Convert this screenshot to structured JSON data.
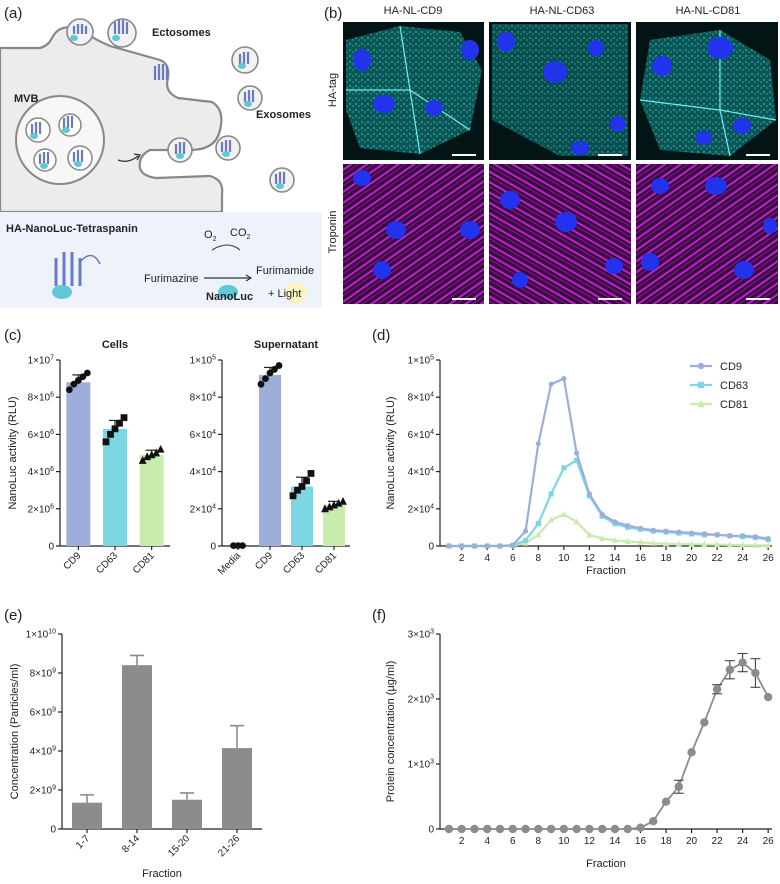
{
  "panels": {
    "a": {
      "label": "(a)",
      "ectosomes": "Ectosomes",
      "mvb": "MVB",
      "exosomes": "Exosomes",
      "construct": "HA-NanoLuc-Tetraspanin",
      "o2": "O",
      "o2sub": "2",
      "co2": "CO",
      "co2sub": "2",
      "furimazine": "Furimazine",
      "furimamide": "Furimamide",
      "light": "+ Light",
      "nanoluc": "NanoLuc",
      "colors": {
        "membrane": "#888888",
        "cell": "#ececec",
        "tetraspanin": "#6a7bc4",
        "nanoluc": "#5ec8d8",
        "bg": "#eef3fb"
      }
    },
    "b": {
      "label": "(b)",
      "columns": [
        "HA-NL-CD9",
        "HA-NL-CD63",
        "HA-NL-CD81"
      ],
      "rows": [
        "HA-tag",
        "Troponin"
      ],
      "colors": {
        "hatag": "#2ec4c4",
        "nuclei": "#2233ee",
        "troponin": "#c020d0"
      }
    },
    "c": {
      "label": "(c)"
    },
    "d": {
      "label": "(d)"
    },
    "e": {
      "label": "(e)"
    },
    "f": {
      "label": "(f)"
    }
  },
  "chart_data": [
    {
      "id": "c-cells",
      "type": "bar",
      "title": "Cells",
      "ylabel": "NanoLuc activity (RLU)",
      "categories": [
        "CD9",
        "CD63",
        "CD81"
      ],
      "values": [
        8800000,
        6300000,
        4900000
      ],
      "errors": [
        400000,
        450000,
        250000
      ],
      "points": [
        [
          8400000,
          8700000,
          8900000,
          9100000,
          9300000
        ],
        [
          5600000,
          6000000,
          6300000,
          6600000,
          6900000
        ],
        [
          4600000,
          4800000,
          4900000,
          5000000,
          5200000
        ]
      ],
      "markers": [
        "circle",
        "square",
        "triangle"
      ],
      "colors": [
        "#9eaedb",
        "#7dd7e3",
        "#c9ebae"
      ],
      "ylim": [
        0,
        10000000
      ],
      "yticks": [
        {
          "v": 0,
          "m": "0",
          "e": ""
        },
        {
          "v": 2000000,
          "m": "2×10",
          "e": "6"
        },
        {
          "v": 4000000,
          "m": "4×10",
          "e": "6"
        },
        {
          "v": 6000000,
          "m": "6×10",
          "e": "6"
        },
        {
          "v": 8000000,
          "m": "8×10",
          "e": "6"
        },
        {
          "v": 10000000,
          "m": "1×10",
          "e": "7"
        }
      ]
    },
    {
      "id": "c-supernatant",
      "type": "bar",
      "title": "Supernatant",
      "categories": [
        "Media",
        "CD9",
        "CD63",
        "CD81"
      ],
      "values": [
        200,
        92000,
        32000,
        22000
      ],
      "errors": [
        0,
        4000,
        5000,
        2000
      ],
      "points": [
        [
          200,
          200,
          200
        ],
        [
          87000,
          90000,
          93000,
          95000,
          97000
        ],
        [
          27000,
          30000,
          32000,
          35000,
          39000
        ],
        [
          20000,
          21000,
          22000,
          23000,
          24000
        ]
      ],
      "markers": [
        "circle",
        "circle",
        "square",
        "triangle"
      ],
      "colors": [
        "#ffffff",
        "#9eaedb",
        "#7dd7e3",
        "#c9ebae"
      ],
      "ylim": [
        0,
        100000
      ],
      "yticks": [
        {
          "v": 0,
          "m": "0",
          "e": ""
        },
        {
          "v": 20000,
          "m": "2×10",
          "e": "4"
        },
        {
          "v": 40000,
          "m": "4×10",
          "e": "4"
        },
        {
          "v": 60000,
          "m": "6×10",
          "e": "4"
        },
        {
          "v": 80000,
          "m": "8×10",
          "e": "4"
        },
        {
          "v": 100000,
          "m": "1×10",
          "e": "5"
        }
      ]
    },
    {
      "id": "d",
      "type": "line",
      "xlabel": "Fraction",
      "ylabel": "NanoLuc activity (RLU)",
      "x": [
        1,
        2,
        3,
        4,
        5,
        6,
        7,
        8,
        9,
        10,
        11,
        12,
        13,
        14,
        15,
        16,
        17,
        18,
        19,
        20,
        21,
        22,
        23,
        24,
        25,
        26
      ],
      "xticks": [
        2,
        4,
        6,
        8,
        10,
        12,
        14,
        16,
        18,
        20,
        22,
        24,
        26
      ],
      "xlim": [
        0.3,
        26.3
      ],
      "ylim": [
        0,
        100000
      ],
      "yticks": [
        {
          "v": 0,
          "m": "0",
          "e": ""
        },
        {
          "v": 20000,
          "m": "2×10",
          "e": "4"
        },
        {
          "v": 40000,
          "m": "4×10",
          "e": "4"
        },
        {
          "v": 60000,
          "m": "6×10",
          "e": "4"
        },
        {
          "v": 80000,
          "m": "8×10",
          "e": "4"
        },
        {
          "v": 100000,
          "m": "1×10",
          "e": "5"
        }
      ],
      "legend_position": "top-right",
      "series": [
        {
          "name": "CD9",
          "color": "#9eaedb",
          "marker": "circle",
          "values": [
            0,
            0,
            0,
            0,
            0,
            500,
            8000,
            55000,
            87000,
            90000,
            50000,
            28000,
            17000,
            13000,
            11000,
            9500,
            8500,
            8000,
            7500,
            7000,
            6500,
            6000,
            5500,
            5500,
            5000,
            4000
          ]
        },
        {
          "name": "CD63",
          "color": "#7dd7e3",
          "marker": "square",
          "values": [
            0,
            0,
            0,
            0,
            0,
            300,
            3000,
            12000,
            28000,
            42000,
            46000,
            27000,
            16000,
            12000,
            10000,
            9000,
            8000,
            7500,
            7000,
            6500,
            6000,
            6000,
            5500,
            5000,
            4500,
            3500
          ]
        },
        {
          "name": "CD81",
          "color": "#c9ebae",
          "marker": "triangle",
          "values": [
            0,
            0,
            0,
            0,
            0,
            200,
            1500,
            6000,
            14000,
            17000,
            13000,
            6000,
            4000,
            3000,
            2500,
            2000,
            1500,
            1200,
            1000,
            900,
            800,
            700,
            600,
            500,
            400,
            300
          ]
        }
      ]
    },
    {
      "id": "e",
      "type": "bar",
      "xlabel": "Fraction",
      "ylabel": "Concentration (Particles/ml)",
      "categories": [
        "1-7",
        "8-14",
        "15-20",
        "21-26"
      ],
      "values": [
        1350000000,
        8400000000,
        1500000000,
        4150000000
      ],
      "errors": [
        400000000,
        500000000,
        350000000,
        1150000000
      ],
      "color": "#8c8c8c",
      "ylim": [
        0,
        10000000000
      ],
      "yticks": [
        {
          "v": 0,
          "m": "0",
          "e": ""
        },
        {
          "v": 2000000000,
          "m": "2×10",
          "e": "9"
        },
        {
          "v": 4000000000,
          "m": "4×10",
          "e": "9"
        },
        {
          "v": 6000000000,
          "m": "6×10",
          "e": "9"
        },
        {
          "v": 8000000000,
          "m": "8×10",
          "e": "9"
        },
        {
          "v": 10000000000,
          "m": "1×10",
          "e": "10"
        }
      ]
    },
    {
      "id": "f",
      "type": "line",
      "xlabel": "Fraction",
      "ylabel": "Protein concentration (µg/ml)",
      "x": [
        1,
        2,
        3,
        4,
        5,
        6,
        7,
        8,
        9,
        10,
        11,
        12,
        13,
        14,
        15,
        16,
        17,
        18,
        19,
        20,
        21,
        22,
        23,
        24,
        25,
        26
      ],
      "xticks": [
        2,
        4,
        6,
        8,
        10,
        12,
        14,
        16,
        18,
        20,
        22,
        24,
        26
      ],
      "xlim": [
        0.3,
        26.3
      ],
      "ylim": [
        0,
        3000
      ],
      "yticks": [
        {
          "v": 0,
          "m": "0",
          "e": ""
        },
        {
          "v": 1000,
          "m": "1×10",
          "e": "3"
        },
        {
          "v": 2000,
          "m": "2×10",
          "e": "3"
        },
        {
          "v": 3000,
          "m": "3×10",
          "e": "3"
        }
      ],
      "color": "#8c8c8c",
      "series": [
        {
          "values": [
            0,
            0,
            0,
            0,
            0,
            0,
            0,
            0,
            0,
            0,
            0,
            0,
            0,
            0,
            0,
            20,
            120,
            420,
            650,
            1180,
            1640,
            2150,
            2450,
            2560,
            2400,
            2030
          ],
          "errors": [
            0,
            0,
            0,
            0,
            0,
            0,
            0,
            0,
            0,
            0,
            0,
            0,
            0,
            0,
            0,
            0,
            0,
            0,
            100,
            0,
            0,
            70,
            140,
            140,
            220,
            0
          ]
        }
      ]
    }
  ]
}
